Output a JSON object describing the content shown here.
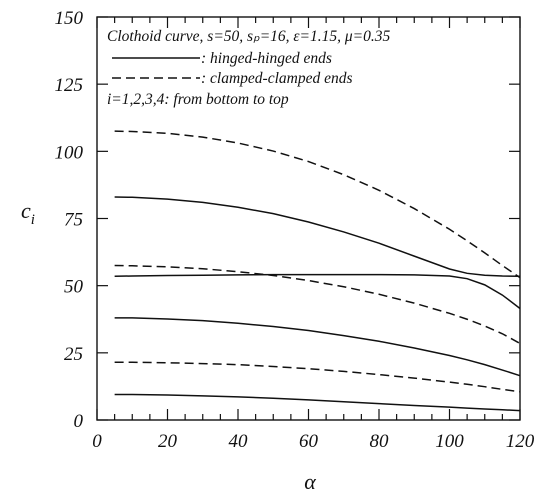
{
  "chart_data": {
    "type": "line",
    "xlabel": "α",
    "ylabel": "c",
    "ylabel_subscript": "i",
    "xlim": [
      0,
      120
    ],
    "ylim": [
      0,
      150
    ],
    "xticks": [
      0,
      20,
      40,
      60,
      80,
      100,
      120
    ],
    "xticks_minor_step": 5,
    "yticks": [
      0,
      25,
      50,
      75,
      100,
      125,
      150
    ],
    "grid": false,
    "legend_position": "top-left",
    "legend": {
      "title": "Clothoid curve, s=50, sₚ=16, ε=1.15, μ=0.35",
      "solid_label": ": hinged-hinged ends",
      "dashed_label": ": clamped-clamped ends",
      "note": "i=1,2,3,4: from bottom to top"
    },
    "x": [
      5,
      10,
      20,
      30,
      40,
      50,
      60,
      70,
      80,
      90,
      100,
      105,
      110,
      115,
      120
    ],
    "series": [
      {
        "style": "solid",
        "values": [
          9.5,
          9.5,
          9.3,
          9.0,
          8.6,
          8.1,
          7.5,
          6.8,
          6.1,
          5.4,
          4.8,
          4.4,
          4.1,
          3.8,
          3.5
        ]
      },
      {
        "style": "solid",
        "values": [
          38.0,
          38.0,
          37.6,
          37.0,
          36.0,
          34.8,
          33.3,
          31.4,
          29.3,
          26.8,
          24.0,
          22.4,
          20.6,
          18.6,
          16.5
        ]
      },
      {
        "style": "solid",
        "values": [
          53.5,
          53.6,
          53.8,
          53.9,
          54.0,
          54.1,
          54.1,
          54.1,
          54.1,
          54.0,
          53.6,
          52.6,
          50.3,
          46.5,
          41.5
        ]
      },
      {
        "style": "solid",
        "values": [
          83.0,
          82.9,
          82.2,
          81.0,
          79.2,
          76.8,
          73.7,
          70.0,
          65.8,
          61.0,
          56.2,
          54.6,
          53.9,
          53.6,
          53.5
        ]
      },
      {
        "style": "dashed",
        "values": [
          21.5,
          21.5,
          21.3,
          21.0,
          20.6,
          19.9,
          19.1,
          18.1,
          16.9,
          15.6,
          14.1,
          13.3,
          12.4,
          11.4,
          10.5
        ]
      },
      {
        "style": "dashed",
        "values": [
          57.5,
          57.4,
          57.0,
          56.3,
          55.2,
          53.8,
          51.9,
          49.6,
          46.8,
          43.5,
          39.7,
          37.5,
          35.0,
          32.1,
          28.5
        ]
      },
      {
        "style": "dashed",
        "values": [
          107.5,
          107.4,
          106.7,
          105.3,
          103.1,
          100.1,
          96.2,
          91.3,
          85.5,
          78.7,
          71.0,
          66.7,
          62.2,
          57.5,
          53.0
        ]
      }
    ]
  }
}
